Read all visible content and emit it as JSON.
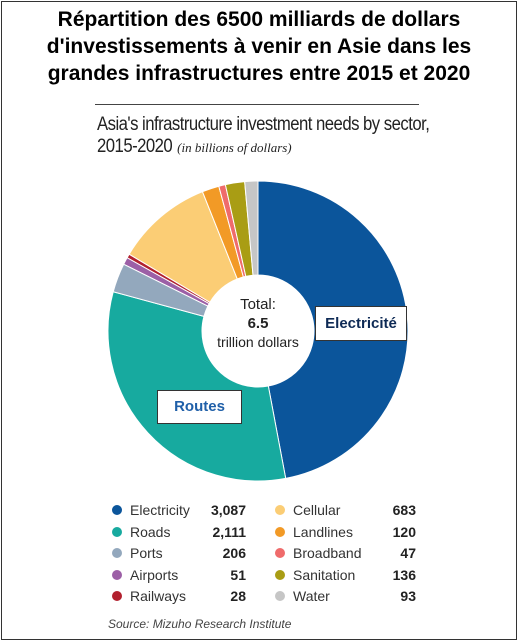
{
  "frame_title": {
    "line1": "Répartition des 6500 milliards de dollars",
    "line2": "d'investissements à venir en Asie dans les",
    "line3": "grandes infrastructures entre 2015 et 2020"
  },
  "chart_title": {
    "line1": "Asia's infrastructure investment needs by sector,",
    "line2": "2015-2020",
    "unit": "(in billions of dollars)"
  },
  "center": {
    "label": "Total:",
    "value": "6.5",
    "unit": "trillion dollars"
  },
  "callouts": {
    "electricity": "Electricité",
    "roads": "Routes"
  },
  "source": "Source: Mizuho Research Institute",
  "chart_data": {
    "type": "pie",
    "title": "Asia's infrastructure investment needs by sector, 2015-2020",
    "unit": "(in billions of dollars)",
    "legend_position": "bottom",
    "slices": [
      {
        "name": "Electricity",
        "value": 3087,
        "display": "3,087",
        "color": "#0b559b"
      },
      {
        "name": "Roads",
        "value": 2111,
        "display": "2,111",
        "color": "#17aa9f"
      },
      {
        "name": "Ports",
        "value": 206,
        "display": "206",
        "color": "#93a8bd"
      },
      {
        "name": "Airports",
        "value": 51,
        "display": "51",
        "color": "#9c5fa6"
      },
      {
        "name": "Railways",
        "value": 28,
        "display": "28",
        "color": "#b2202e"
      },
      {
        "name": "Cellular",
        "value": 683,
        "display": "683",
        "color": "#fbcd75"
      },
      {
        "name": "Landlines",
        "value": 120,
        "display": "120",
        "color": "#f29a26"
      },
      {
        "name": "Broadband",
        "value": 47,
        "display": "47",
        "color": "#ef6b6b"
      },
      {
        "name": "Sanitation",
        "value": 136,
        "display": "136",
        "color": "#a99d14"
      },
      {
        "name": "Water",
        "value": 93,
        "display": "93",
        "color": "#c6c6c6"
      }
    ]
  }
}
